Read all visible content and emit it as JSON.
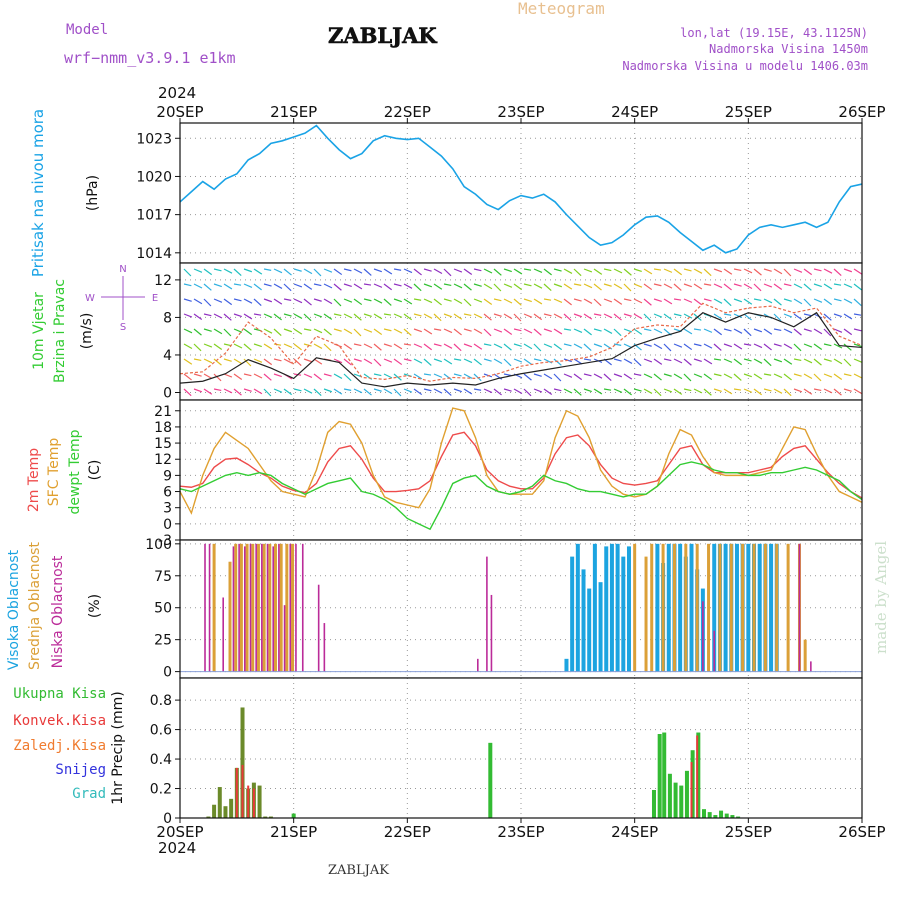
{
  "header": {
    "model_label": "Model",
    "model_name": "wrf−nmm_v3.9.1  e1km",
    "station": "ZABLJAK",
    "product": "Meteogram",
    "lonlat": "lon,lat (19.15E, 43.1125N)",
    "elevation": "Nadmorska Visina 1450m",
    "model_elevation": "Nadmorska Visina u modelu 1406.03m",
    "year_top": "2024",
    "year_bottom": "2024",
    "footer_station": "ZABLJAK",
    "credit": "made by Angel"
  },
  "colors": {
    "pressure": "#1aa3e6",
    "temp2m": "#ee4b4b",
    "sfc": "#e0a030",
    "dewpt": "#33cc33",
    "high_cloud": "#1ca4e0",
    "mid_cloud": "#dba038",
    "low_cloud": "#bb2b99",
    "precip": "#33bb33",
    "conv": "#e83a3a",
    "frozen": "#f07c30",
    "snow": "#3333dd",
    "graupel": "#33bbbb",
    "model_label": "#a050c8",
    "product_label": "#e8c090"
  },
  "chart_data": [
    {
      "type": "line",
      "name": "pressure",
      "ylabel": [
        "Pritisak na nivou mora",
        "(hPa)"
      ],
      "x_ticks": [
        "20SEP",
        "21SEP",
        "22SEP",
        "23SEP",
        "24SEP",
        "25SEP",
        "26SEP"
      ],
      "x_range_days": [
        0,
        6
      ],
      "ylim": [
        1013.2,
        1024.2
      ],
      "yticks": [
        1014,
        1017,
        1020,
        1023
      ],
      "grid": true,
      "series": [
        {
          "x": [
            0,
            0.1,
            0.2,
            0.3,
            0.4,
            0.5,
            0.6,
            0.7,
            0.8,
            0.9,
            1.0,
            1.1,
            1.2,
            1.3,
            1.4,
            1.5,
            1.6,
            1.7,
            1.8,
            1.9,
            2.0,
            2.1,
            2.2,
            2.3,
            2.4,
            2.5,
            2.6,
            2.7,
            2.8,
            2.9,
            3.0,
            3.1,
            3.2,
            3.3,
            3.4,
            3.5,
            3.6,
            3.7,
            3.8,
            3.9,
            4.0,
            4.1,
            4.2,
            4.3,
            4.4,
            4.5,
            4.6,
            4.7,
            4.8,
            4.9,
            5.0,
            5.1,
            5.2,
            5.3,
            5.4,
            5.5,
            5.6,
            5.7,
            5.8,
            5.9,
            6.0
          ],
          "y": [
            1018.0,
            1018.8,
            1019.6,
            1019.0,
            1019.8,
            1020.2,
            1021.3,
            1021.8,
            1022.6,
            1022.8,
            1023.1,
            1023.4,
            1024.0,
            1023.0,
            1022.1,
            1021.4,
            1021.8,
            1022.8,
            1023.2,
            1023.0,
            1022.9,
            1023.0,
            1022.3,
            1021.6,
            1020.6,
            1019.2,
            1018.6,
            1017.8,
            1017.4,
            1018.1,
            1018.5,
            1018.3,
            1018.6,
            1018.0,
            1017.0,
            1016.1,
            1015.2,
            1014.6,
            1014.8,
            1015.4,
            1016.2,
            1016.8,
            1016.9,
            1016.4,
            1015.6,
            1014.9,
            1014.2,
            1014.6,
            1014.0,
            1014.3,
            1015.4,
            1016.0,
            1016.2,
            1016.0,
            1016.2,
            1016.4,
            1016.0,
            1016.4,
            1018.0,
            1019.2,
            1019.4
          ]
        }
      ]
    },
    {
      "type": "line",
      "name": "wind10m",
      "ylabel": [
        "10m Vjetar",
        "Brzina i Pravac",
        "(m/s)"
      ],
      "compass": {
        "n": "N",
        "s": "S",
        "e": "E",
        "w": "W"
      },
      "ylim": [
        -0.8,
        13.8
      ],
      "yticks": [
        0,
        4,
        8,
        12
      ],
      "grid": true,
      "series": [
        {
          "name": "speed",
          "x": [
            0,
            0.2,
            0.4,
            0.6,
            0.8,
            1.0,
            1.2,
            1.4,
            1.6,
            1.8,
            2.0,
            2.2,
            2.4,
            2.6,
            2.8,
            3.0,
            3.2,
            3.4,
            3.6,
            3.8,
            4.0,
            4.2,
            4.4,
            4.6,
            4.8,
            5.0,
            5.2,
            5.4,
            5.6,
            5.8,
            6.0
          ],
          "y": [
            1.0,
            1.2,
            2.0,
            3.5,
            2.6,
            1.5,
            3.7,
            3.2,
            1.0,
            0.6,
            1.0,
            0.8,
            1.0,
            0.8,
            1.5,
            2.0,
            2.4,
            2.8,
            3.2,
            3.6,
            5.0,
            5.8,
            6.5,
            8.5,
            7.5,
            8.5,
            8.0,
            7.0,
            8.5,
            5.0,
            4.8
          ]
        },
        {
          "name": "gust",
          "x": [
            0,
            0.2,
            0.4,
            0.6,
            0.8,
            1.0,
            1.2,
            1.4,
            1.6,
            1.8,
            2.0,
            2.2,
            2.4,
            2.6,
            2.8,
            3.0,
            3.2,
            3.4,
            3.6,
            3.8,
            4.0,
            4.2,
            4.4,
            4.6,
            4.8,
            5.0,
            5.2,
            5.4,
            5.6,
            5.8,
            6.0
          ],
          "y": [
            2.0,
            2.2,
            4.2,
            7.5,
            5.8,
            3.0,
            6.0,
            5.0,
            1.6,
            1.4,
            1.8,
            1.2,
            1.6,
            1.5,
            2.0,
            2.8,
            3.2,
            3.4,
            3.8,
            4.8,
            6.8,
            7.2,
            7.0,
            9.5,
            8.5,
            9.0,
            9.2,
            8.5,
            9.0,
            6.0,
            5.0
          ]
        }
      ]
    },
    {
      "type": "line",
      "name": "temperature",
      "ylabel": [
        "2m Temp",
        "SFC Temp",
        "dewpt Temp",
        "(C)"
      ],
      "ylim": [
        -3,
        23
      ],
      "yticks": [
        -3,
        0,
        3,
        6,
        9,
        12,
        15,
        18,
        21
      ],
      "grid": true,
      "series": [
        {
          "name": "2m Temp",
          "x": [
            0,
            0.1,
            0.2,
            0.3,
            0.4,
            0.5,
            0.6,
            0.7,
            0.8,
            0.9,
            1.0,
            1.1,
            1.2,
            1.3,
            1.4,
            1.5,
            1.6,
            1.7,
            1.8,
            1.9,
            2.0,
            2.1,
            2.2,
            2.3,
            2.4,
            2.5,
            2.6,
            2.7,
            2.8,
            2.9,
            3.0,
            3.1,
            3.2,
            3.3,
            3.4,
            3.5,
            3.6,
            3.7,
            3.8,
            3.9,
            4.0,
            4.1,
            4.2,
            4.3,
            4.4,
            4.5,
            4.6,
            4.7,
            4.8,
            4.9,
            5.0,
            5.1,
            5.2,
            5.3,
            5.4,
            5.5,
            5.6,
            5.7,
            5.8,
            5.9,
            6.0
          ],
          "y": [
            7.0,
            6.8,
            7.5,
            10.5,
            12.0,
            12.2,
            11.0,
            9.5,
            8.5,
            7.0,
            6.2,
            5.8,
            7.5,
            11.5,
            14.0,
            14.5,
            12.0,
            8.5,
            6.0,
            6.0,
            6.2,
            6.5,
            8.0,
            12.5,
            16.5,
            17.0,
            14.5,
            10.0,
            8.0,
            7.0,
            6.5,
            6.5,
            8.5,
            13.0,
            16.0,
            16.5,
            14.5,
            11.0,
            8.5,
            7.5,
            7.2,
            7.5,
            8.0,
            11.0,
            14.0,
            14.5,
            11.0,
            9.5,
            9.5,
            9.5,
            9.5,
            10.0,
            10.5,
            12.5,
            14.0,
            14.5,
            12.0,
            9.5,
            7.5,
            6.0,
            4.8
          ]
        },
        {
          "name": "SFC Temp",
          "x": [
            0,
            0.1,
            0.2,
            0.3,
            0.4,
            0.5,
            0.6,
            0.7,
            0.8,
            0.9,
            1.0,
            1.1,
            1.2,
            1.3,
            1.4,
            1.5,
            1.6,
            1.7,
            1.8,
            1.9,
            2.0,
            2.1,
            2.2,
            2.3,
            2.4,
            2.5,
            2.6,
            2.7,
            2.8,
            2.9,
            3.0,
            3.1,
            3.2,
            3.3,
            3.4,
            3.5,
            3.6,
            3.7,
            3.8,
            3.9,
            4.0,
            4.1,
            4.2,
            4.3,
            4.4,
            4.5,
            4.6,
            4.7,
            4.8,
            4.9,
            5.0,
            5.1,
            5.2,
            5.3,
            5.4,
            5.5,
            5.6,
            5.7,
            5.8,
            5.9,
            6.0
          ],
          "y": [
            6.0,
            2.0,
            9.0,
            14.0,
            17.0,
            15.5,
            14.0,
            11.0,
            8.0,
            6.0,
            5.5,
            5.0,
            10.0,
            17.0,
            19.0,
            18.5,
            15.0,
            9.0,
            5.0,
            4.0,
            3.5,
            3.0,
            6.5,
            15.0,
            21.5,
            21.0,
            16.0,
            9.0,
            6.0,
            5.5,
            5.5,
            5.5,
            8.0,
            16.0,
            21.0,
            20.0,
            16.0,
            10.0,
            7.0,
            5.5,
            5.0,
            5.5,
            7.0,
            13.0,
            17.5,
            16.5,
            12.5,
            9.5,
            9.0,
            9.0,
            9.0,
            9.5,
            10.0,
            14.0,
            18.0,
            17.5,
            13.0,
            9.0,
            6.0,
            5.0,
            4.0
          ]
        },
        {
          "name": "dewpt Temp",
          "x": [
            0,
            0.1,
            0.2,
            0.3,
            0.4,
            0.5,
            0.6,
            0.7,
            0.8,
            0.9,
            1.0,
            1.1,
            1.2,
            1.3,
            1.4,
            1.5,
            1.6,
            1.7,
            1.8,
            1.9,
            2.0,
            2.1,
            2.2,
            2.3,
            2.4,
            2.5,
            2.6,
            2.7,
            2.8,
            2.9,
            3.0,
            3.1,
            3.2,
            3.3,
            3.4,
            3.5,
            3.6,
            3.7,
            3.8,
            3.9,
            4.0,
            4.1,
            4.2,
            4.3,
            4.4,
            4.5,
            4.6,
            4.7,
            4.8,
            4.9,
            5.0,
            5.1,
            5.2,
            5.3,
            5.4,
            5.5,
            5.6,
            5.7,
            5.8,
            5.9,
            6.0
          ],
          "y": [
            6.5,
            6.0,
            7.0,
            8.0,
            9.0,
            9.5,
            9.0,
            9.5,
            9.0,
            7.5,
            6.5,
            5.5,
            6.5,
            7.5,
            8.0,
            8.5,
            6.0,
            5.5,
            4.5,
            3.0,
            1.0,
            0.0,
            -1.0,
            3.0,
            7.5,
            8.5,
            9.0,
            7.0,
            6.0,
            5.5,
            6.0,
            7.0,
            9.0,
            8.0,
            7.5,
            6.5,
            6.0,
            6.0,
            5.5,
            5.0,
            5.5,
            5.5,
            7.0,
            9.0,
            11.0,
            11.5,
            11.0,
            10.0,
            9.5,
            9.5,
            9.0,
            9.0,
            9.5,
            9.5,
            10.0,
            10.5,
            10.0,
            9.0,
            8.0,
            6.0,
            4.5
          ]
        }
      ]
    },
    {
      "type": "bar",
      "name": "clouds",
      "ylabel": [
        "Visoka Oblacnost",
        "Srednja Oblacnost",
        "Niska Oblacnost",
        "(%)"
      ],
      "ylim": [
        -5,
        103
      ],
      "yticks": [
        0,
        25,
        50,
        75,
        100
      ],
      "yticklabels": [
        "0",
        "25",
        "50",
        "75",
        "100"
      ],
      "grid": true,
      "series": [
        {
          "name": "low",
          "x": [
            0.22,
            0.26,
            0.38,
            0.47,
            0.52,
            0.57,
            0.62,
            0.67,
            0.72,
            0.77,
            0.82,
            0.87,
            0.92,
            0.97,
            1.02,
            1.08,
            1.22,
            1.27,
            2.62,
            2.7,
            2.74,
            4.6,
            4.7,
            5.45,
            5.55
          ],
          "values": [
            100,
            100,
            58,
            98,
            100,
            98,
            100,
            100,
            100,
            100,
            98,
            100,
            52,
            100,
            100,
            100,
            68,
            38,
            10,
            90,
            60,
            55,
            32,
            100,
            8
          ]
        },
        {
          "name": "mid",
          "x": [
            0.3,
            0.44,
            0.49,
            0.54,
            0.59,
            0.64,
            0.69,
            0.74,
            0.79,
            0.84,
            0.89,
            0.94,
            0.99,
            4.0,
            4.1,
            4.15,
            4.25,
            4.35,
            4.45,
            4.55,
            4.65,
            4.75,
            4.85,
            4.95,
            5.05,
            5.15,
            5.25,
            5.35,
            5.45,
            5.5
          ],
          "values": [
            100,
            86,
            100,
            100,
            100,
            100,
            100,
            100,
            100,
            100,
            100,
            100,
            100,
            100,
            90,
            100,
            100,
            100,
            100,
            100,
            100,
            100,
            100,
            100,
            100,
            100,
            100,
            100,
            100,
            25
          ]
        },
        {
          "name": "high",
          "x": [
            3.4,
            3.45,
            3.5,
            3.55,
            3.6,
            3.65,
            3.7,
            3.75,
            3.8,
            3.85,
            3.9,
            3.95,
            4.2,
            4.25,
            4.3,
            4.35,
            4.4,
            4.45,
            4.5,
            4.55,
            4.6,
            4.7,
            4.75,
            4.8,
            4.85,
            4.9,
            4.95,
            5.0,
            5.05,
            5.1,
            5.15,
            5.2,
            5.25
          ],
          "values": [
            10,
            90,
            100,
            80,
            65,
            100,
            70,
            98,
            100,
            100,
            90,
            98,
            100,
            85,
            100,
            100,
            100,
            90,
            100,
            80,
            65,
            100,
            100,
            100,
            100,
            100,
            100,
            100,
            100,
            100,
            100,
            100,
            100
          ]
        }
      ]
    },
    {
      "type": "bar",
      "name": "precipitation",
      "ylabel": [
        "1hr Precip (mm)"
      ],
      "legend": [
        "Ukupna Kisa",
        "Konvek.Kisa",
        "Zaledj.Kisa",
        "Snijeg",
        "Grad"
      ],
      "ylim": [
        0,
        0.95
      ],
      "yticks": [
        0,
        0.2,
        0.4,
        0.6,
        0.8
      ],
      "yticklabels": [
        "0",
        "0.2",
        "0.4",
        "0.6",
        "0.8"
      ],
      "grid": true,
      "series": [
        {
          "name": "Ukupna Kisa",
          "x": [
            0.25,
            0.3,
            0.35,
            0.4,
            0.45,
            0.5,
            0.55,
            0.6,
            0.65,
            0.7,
            0.75,
            0.8,
            1.0,
            2.73,
            4.17,
            4.22,
            4.26,
            4.31,
            4.36,
            4.41,
            4.46,
            4.51,
            4.56,
            4.61,
            4.66,
            4.71,
            4.76,
            4.81,
            4.86,
            4.91
          ],
          "values": [
            0.01,
            0.09,
            0.21,
            0.08,
            0.13,
            0.34,
            0.75,
            0.2,
            0.24,
            0.22,
            0.01,
            0.01,
            0.03,
            0.51,
            0.19,
            0.57,
            0.58,
            0.3,
            0.24,
            0.22,
            0.32,
            0.46,
            0.58,
            0.06,
            0.04,
            0.02,
            0.05,
            0.03,
            0.02,
            0.01
          ]
        },
        {
          "name": "Konvek.Kisa",
          "x": [
            0.5,
            0.55,
            0.6,
            0.65,
            4.5,
            4.55
          ],
          "values": [
            0.34,
            0.36,
            0.22,
            0.2,
            0.38,
            0.56
          ]
        }
      ]
    }
  ]
}
